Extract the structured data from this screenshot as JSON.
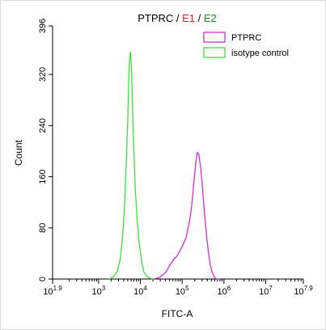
{
  "chart_data": {
    "type": "line",
    "title": {
      "parts": [
        {
          "text": "PTPRC",
          "color": "#000000"
        },
        {
          "text": " / ",
          "color": "#000000"
        },
        {
          "text": "E1",
          "color": "#d42020"
        },
        {
          "text": " / ",
          "color": "#000000"
        },
        {
          "text": "E2",
          "color": "#1e8c1e"
        }
      ]
    },
    "xlabel": "FITC-A",
    "ylabel": "Count",
    "x_scale": "log10",
    "xlim_log10": [
      1.9,
      7.9
    ],
    "ylim": [
      0,
      396
    ],
    "x_ticks": [
      {
        "exp": 1.9,
        "base": "10",
        "sup": "1.9"
      },
      {
        "exp": 3,
        "base": "10",
        "sup": "3"
      },
      {
        "exp": 4,
        "base": "10",
        "sup": "4"
      },
      {
        "exp": 5,
        "base": "10",
        "sup": "5"
      },
      {
        "exp": 6,
        "base": "10",
        "sup": "6"
      },
      {
        "exp": 7,
        "base": "10",
        "sup": "7"
      },
      {
        "exp": 7.9,
        "base": "10",
        "sup": "7.9"
      }
    ],
    "y_ticks": [
      0,
      80,
      160,
      240,
      320,
      396
    ],
    "legend": {
      "position": "top-right"
    },
    "grid": false,
    "series": [
      {
        "name": "PTPRC",
        "color": "#d22cd6",
        "log10_x": [
          4.3,
          4.45,
          4.6,
          4.7,
          4.8,
          4.88,
          4.95,
          5.0,
          5.05,
          5.1,
          5.15,
          5.2,
          5.24,
          5.28,
          5.32,
          5.36,
          5.4,
          5.44,
          5.48,
          5.52,
          5.56,
          5.6,
          5.64,
          5.68,
          5.72,
          5.76,
          5.8,
          5.85,
          5.9
        ],
        "values": [
          0,
          2,
          10,
          21,
          31,
          36,
          45,
          51,
          58,
          66,
          82,
          100,
          122,
          150,
          178,
          198,
          195,
          176,
          148,
          115,
          85,
          58,
          36,
          20,
          10,
          4,
          1,
          0,
          0
        ]
      },
      {
        "name": "isotype control",
        "color": "#3ddf3d",
        "log10_x": [
          3.25,
          3.35,
          3.45,
          3.52,
          3.58,
          3.62,
          3.66,
          3.7,
          3.72,
          3.74,
          3.76,
          3.78,
          3.8,
          3.82,
          3.85,
          3.88,
          3.92,
          3.96,
          4.0,
          4.04,
          4.08,
          4.13,
          4.2,
          4.3
        ],
        "values": [
          0,
          3,
          12,
          32,
          70,
          115,
          175,
          250,
          300,
          345,
          355,
          340,
          300,
          250,
          190,
          140,
          95,
          65,
          42,
          24,
          12,
          6,
          2,
          0
        ]
      }
    ]
  }
}
